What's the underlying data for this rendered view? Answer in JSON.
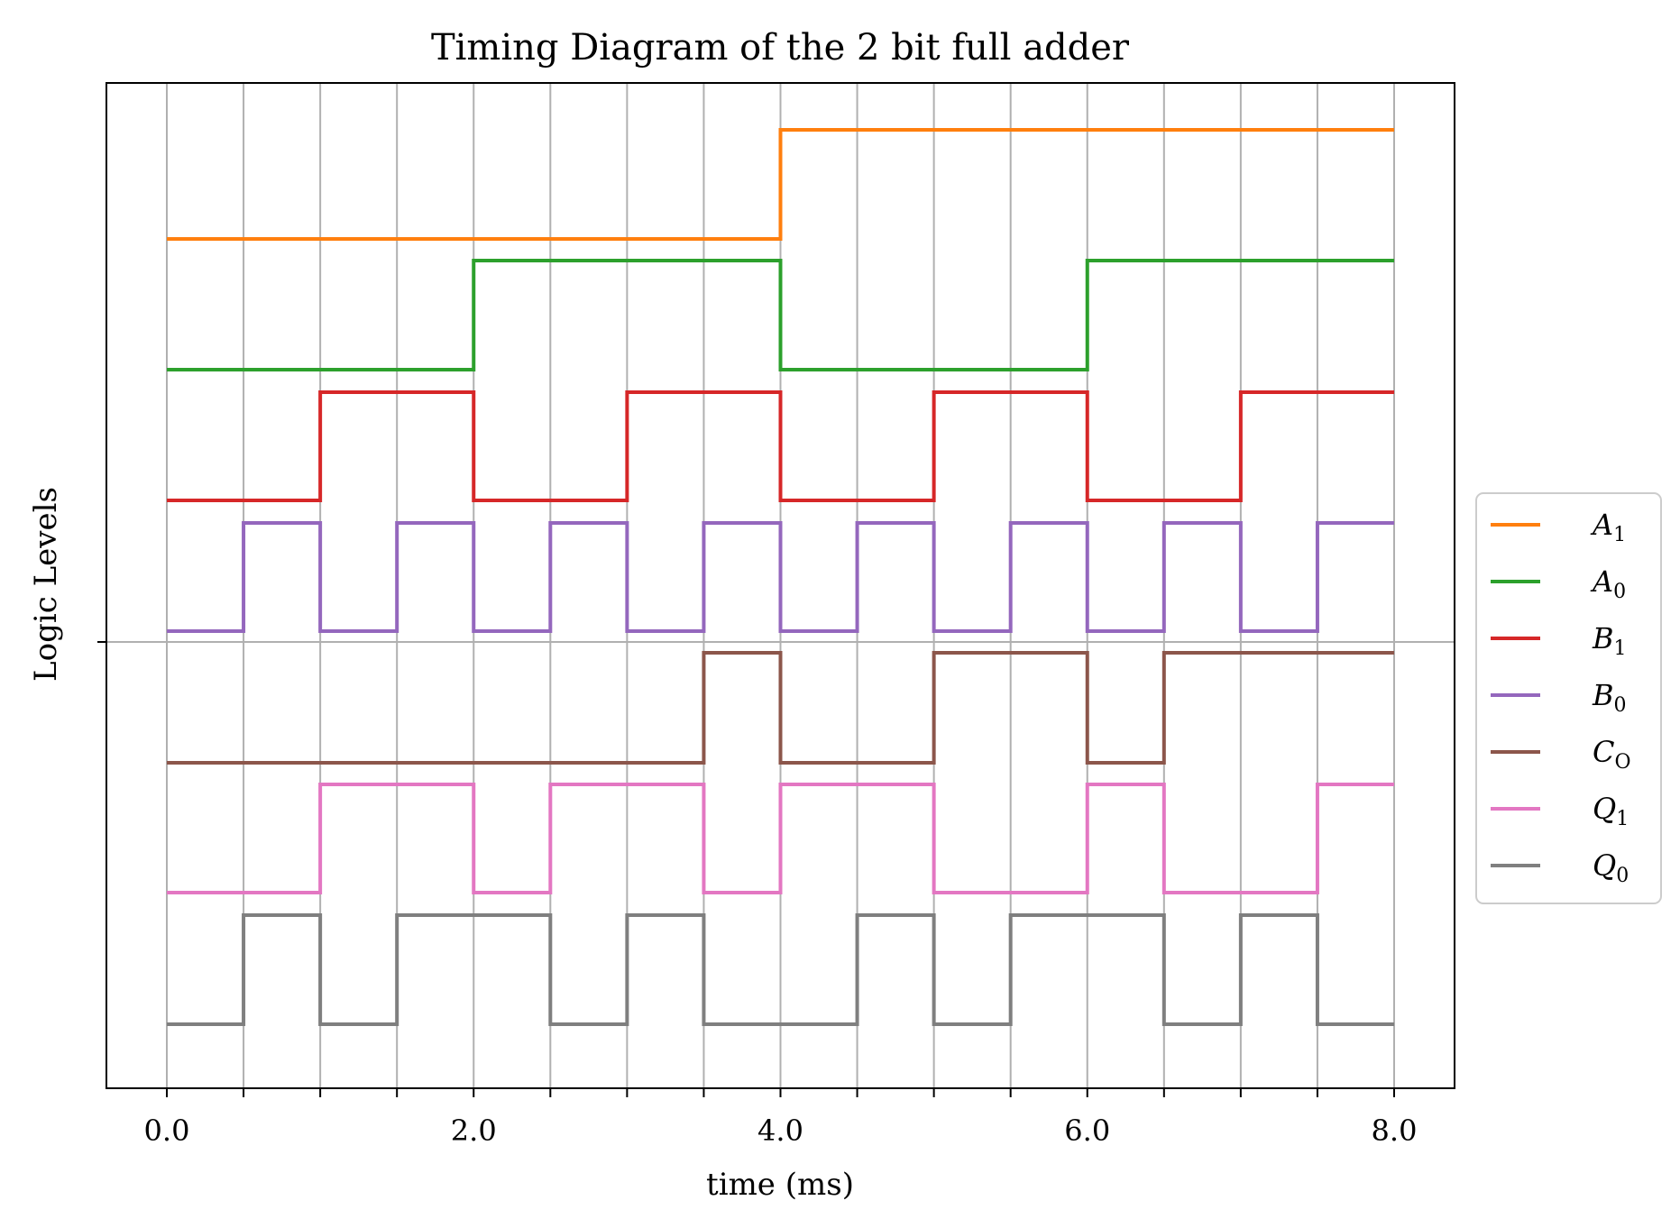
{
  "chart_data": {
    "type": "line",
    "title": "Timing Diagram of the 2 bit full adder",
    "xlabel": "time (ms)",
    "ylabel": "Logic Levels",
    "xlim": [
      -0.4,
      8.4
    ],
    "x_tick_labels": [
      {
        "value": 0,
        "label": "0.0"
      },
      {
        "value": 2,
        "label": "2.0"
      },
      {
        "value": 4,
        "label": "4.0"
      },
      {
        "value": 6,
        "label": "6.0"
      },
      {
        "value": 8,
        "label": "8.0"
      }
    ],
    "x_minor_ticks": [
      0,
      0.5,
      1,
      1.5,
      2,
      2.5,
      3,
      3.5,
      4,
      4.5,
      5,
      5.5,
      6,
      6.5,
      7,
      7.5,
      8
    ],
    "grid": true,
    "legend_placement": "right-center",
    "series": [
      {
        "name": "A",
        "sub": "1",
        "color": "#ff7f0e",
        "transitions": [
          0,
          4,
          8
        ],
        "levels": [
          0,
          1
        ]
      },
      {
        "name": "A",
        "sub": "0",
        "color": "#2ca02c",
        "transitions": [
          0,
          2,
          4,
          6,
          8
        ],
        "levels": [
          0,
          1,
          0,
          1
        ]
      },
      {
        "name": "B",
        "sub": "1",
        "color": "#d62728",
        "transitions": [
          0,
          1,
          2,
          3,
          4,
          5,
          6,
          7,
          8
        ],
        "levels": [
          0,
          1,
          0,
          1,
          0,
          1,
          0,
          1
        ]
      },
      {
        "name": "B",
        "sub": "0",
        "color": "#9467bd",
        "transitions": [
          0,
          0.5,
          1,
          1.5,
          2,
          2.5,
          3,
          3.5,
          4,
          4.5,
          5,
          5.5,
          6,
          6.5,
          7,
          7.5,
          8
        ],
        "levels": [
          0,
          1,
          0,
          1,
          0,
          1,
          0,
          1,
          0,
          1,
          0,
          1,
          0,
          1,
          0,
          1
        ]
      },
      {
        "name": "C",
        "sub": "O",
        "color": "#8c564b",
        "transitions": [
          0,
          3.5,
          4,
          5,
          6,
          6.5,
          8
        ],
        "levels": [
          0,
          1,
          0,
          1,
          0,
          1
        ]
      },
      {
        "name": "Q",
        "sub": "1",
        "color": "#e377c2",
        "transitions": [
          0,
          1,
          2,
          2.5,
          3.5,
          4,
          5,
          6,
          6.5,
          7.5,
          8
        ],
        "levels": [
          0,
          1,
          0,
          1,
          0,
          1,
          0,
          1,
          0,
          1
        ]
      },
      {
        "name": "Q",
        "sub": "0",
        "color": "#7f7f7f",
        "transitions": [
          0,
          0.5,
          1,
          1.5,
          2.5,
          3,
          3.5,
          4.5,
          5,
          5.5,
          6.5,
          7,
          7.5,
          8
        ],
        "levels": [
          0,
          1,
          0,
          1,
          0,
          1,
          0,
          1,
          0,
          1,
          0,
          1,
          0
        ]
      }
    ]
  }
}
